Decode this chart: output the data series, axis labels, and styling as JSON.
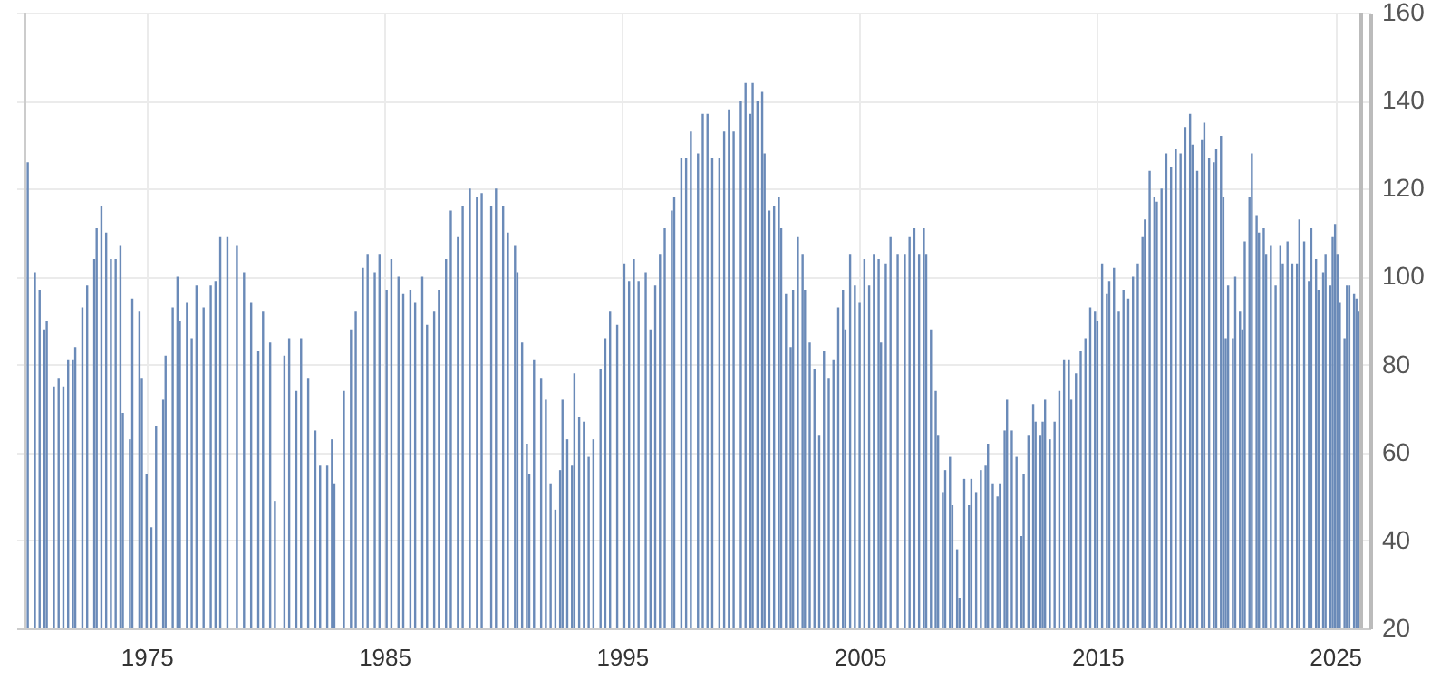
{
  "chart_data": {
    "type": "bar",
    "color": "#6a8ab8",
    "x": [
      1970.0,
      1970.3,
      1970.5,
      1970.7,
      1970.8,
      1971.1,
      1971.3,
      1971.5,
      1971.7,
      1971.9,
      1972.0,
      1972.3,
      1972.5,
      1972.8,
      1972.9,
      1973.1,
      1973.3,
      1973.5,
      1973.7,
      1973.9,
      1974.0,
      1974.3,
      1974.4,
      1974.7,
      1974.8,
      1975.0,
      1975.2,
      1975.4,
      1975.7,
      1975.8,
      1976.1,
      1976.3,
      1976.4,
      1976.7,
      1976.9,
      1977.1,
      1977.4,
      1977.7,
      1977.9,
      1978.1,
      1978.4,
      1978.8,
      1979.1,
      1979.4,
      1979.7,
      1979.9,
      1980.2,
      1980.4,
      1980.8,
      1981.0,
      1981.3,
      1981.5,
      1981.8,
      1982.1,
      1982.3,
      1982.6,
      1982.8,
      1982.9,
      1983.3,
      1983.6,
      1983.8,
      1984.1,
      1984.3,
      1984.6,
      1984.8,
      1985.1,
      1985.3,
      1985.6,
      1985.8,
      1986.1,
      1986.3,
      1986.6,
      1986.8,
      1987.1,
      1987.3,
      1987.6,
      1987.8,
      1988.1,
      1988.3,
      1988.6,
      1988.9,
      1989.1,
      1989.5,
      1989.7,
      1990.0,
      1990.2,
      1990.5,
      1990.6,
      1990.8,
      1991.0,
      1991.1,
      1991.3,
      1991.6,
      1991.8,
      1992.0,
      1992.2,
      1992.4,
      1992.5,
      1992.7,
      1992.9,
      1993.0,
      1993.2,
      1993.4,
      1993.6,
      1993.8,
      1994.1,
      1994.3,
      1994.5,
      1994.8,
      1995.1,
      1995.3,
      1995.5,
      1995.7,
      1996.0,
      1996.2,
      1996.4,
      1996.6,
      1996.8,
      1997.1,
      1997.2,
      1997.5,
      1997.7,
      1997.9,
      1998.2,
      1998.4,
      1998.6,
      1998.8,
      1999.1,
      1999.3,
      1999.5,
      1999.7,
      2000.0,
      2000.2,
      2000.4,
      2000.5,
      2000.7,
      2000.9,
      2001.0,
      2001.2,
      2001.4,
      2001.6,
      2001.7,
      2001.9,
      2002.1,
      2002.2,
      2002.4,
      2002.6,
      2002.7,
      2002.9,
      2003.1,
      2003.3,
      2003.5,
      2003.7,
      2003.9,
      2004.1,
      2004.3,
      2004.4,
      2004.6,
      2004.8,
      2005.0,
      2005.2,
      2005.4,
      2005.6,
      2005.8,
      2005.9,
      2006.1,
      2006.3,
      2006.6,
      2006.9,
      2007.1,
      2007.3,
      2007.5,
      2007.7,
      2007.8,
      2008.0,
      2008.2,
      2008.3,
      2008.5,
      2008.6,
      2008.8,
      2008.9,
      2009.1,
      2009.2,
      2009.4,
      2009.6,
      2009.7,
      2009.9,
      2010.1,
      2010.3,
      2010.4,
      2010.6,
      2010.8,
      2010.9,
      2011.1,
      2011.2,
      2011.4,
      2011.6,
      2011.8,
      2011.9,
      2012.1,
      2012.3,
      2012.4,
      2012.6,
      2012.7,
      2012.8,
      2013.0,
      2013.2,
      2013.4,
      2013.6,
      2013.8,
      2013.9,
      2014.1,
      2014.3,
      2014.5,
      2014.7,
      2014.9,
      2015.0,
      2015.2,
      2015.4,
      2015.5,
      2015.7,
      2015.9,
      2016.1,
      2016.3,
      2016.5,
      2016.7,
      2016.9,
      2017.0,
      2017.2,
      2017.4,
      2017.5,
      2017.7,
      2017.9,
      2018.1,
      2018.3,
      2018.5,
      2018.7,
      2018.9,
      2019.0,
      2019.2,
      2019.4,
      2019.5,
      2019.7,
      2019.9,
      2020.0,
      2020.2,
      2020.3,
      2020.4,
      2020.5,
      2020.7,
      2020.8,
      2021.0,
      2021.1,
      2021.2,
      2021.4,
      2021.5,
      2021.7,
      2021.8,
      2022.0,
      2022.1,
      2022.3,
      2022.5,
      2022.7,
      2022.8,
      2023.0,
      2023.2,
      2023.4,
      2023.5,
      2023.7,
      2023.9,
      2024.0,
      2024.2,
      2024.3,
      2024.5,
      2024.6,
      2024.8,
      2024.9,
      2025.0,
      2025.1,
      2025.2,
      2025.4,
      2025.5,
      2025.6,
      2025.8,
      2025.9,
      2026.0
    ],
    "values": [
      126,
      101,
      97,
      88,
      90,
      75,
      77,
      75,
      81,
      81,
      84,
      93,
      98,
      104,
      111,
      116,
      110,
      104,
      104,
      107,
      69,
      63,
      95,
      92,
      77,
      55,
      43,
      66,
      72,
      82,
      93,
      100,
      90,
      94,
      86,
      98,
      93,
      98,
      99,
      109,
      109,
      107,
      101,
      94,
      83,
      92,
      85,
      49,
      82,
      86,
      74,
      86,
      77,
      65,
      57,
      57,
      63,
      53,
      74,
      88,
      92,
      102,
      105,
      101,
      105,
      97,
      104,
      100,
      96,
      97,
      94,
      100,
      89,
      92,
      97,
      104,
      115,
      109,
      116,
      120,
      118,
      119,
      116,
      120,
      116,
      110,
      107,
      101,
      85,
      62,
      55,
      81,
      77,
      72,
      53,
      47,
      56,
      72,
      63,
      57,
      78,
      68,
      67,
      59,
      63,
      79,
      86,
      92,
      89,
      103,
      99,
      104,
      99,
      101,
      88,
      98,
      105,
      111,
      115,
      118,
      127,
      127,
      133,
      128,
      137,
      137,
      127,
      127,
      133,
      138,
      133,
      140,
      144,
      137,
      144,
      140,
      142,
      128,
      115,
      116,
      118,
      111,
      96,
      84,
      97,
      109,
      105,
      97,
      85,
      79,
      64,
      83,
      77,
      81,
      93,
      97,
      88,
      105,
      98,
      94,
      104,
      98,
      105,
      104,
      85,
      103,
      109,
      105,
      105,
      109,
      111,
      105,
      111,
      105,
      88,
      74,
      64,
      51,
      56,
      59,
      48,
      38,
      27,
      54,
      48,
      54,
      51,
      56,
      57,
      62,
      53,
      50,
      53,
      65,
      72,
      65,
      59,
      41,
      55,
      64,
      71,
      67,
      64,
      67,
      72,
      63,
      67,
      74,
      81,
      81,
      72,
      78,
      83,
      86,
      93,
      92,
      90,
      103,
      96,
      99,
      102,
      92,
      97,
      95,
      100,
      103,
      109,
      113,
      124,
      118,
      117,
      120,
      128,
      125,
      129,
      128,
      134,
      137,
      130,
      124,
      131,
      135,
      127,
      126,
      129,
      132,
      118,
      86,
      98,
      86,
      100,
      92,
      88,
      108,
      118,
      128,
      114,
      110,
      111,
      105,
      107,
      98,
      107,
      103,
      108,
      103,
      103,
      113,
      108,
      99,
      111,
      104,
      97,
      101,
      105,
      98,
      109,
      112,
      105,
      94,
      86,
      98,
      98,
      96,
      95,
      92
    ],
    "xlim": [
      1969.9,
      2026.1
    ],
    "xticks": [
      1975,
      1985,
      1995,
      2005,
      2015,
      2025
    ],
    "ylim": [
      20,
      160
    ],
    "yticks": [
      20,
      40,
      60,
      80,
      100,
      120,
      140,
      160
    ],
    "grid": true
  }
}
